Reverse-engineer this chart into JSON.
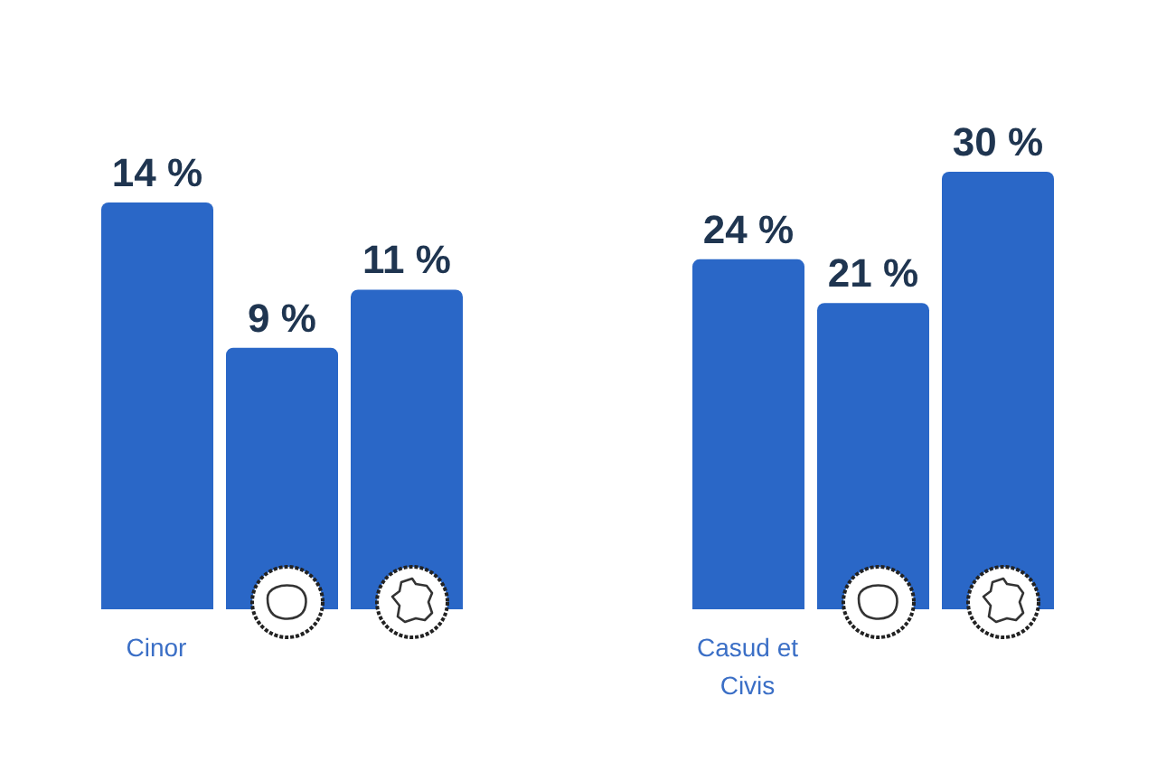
{
  "chart_data": [
    {
      "type": "bar",
      "categories": [
        "Cinor",
        null,
        null
      ],
      "values": [
        14,
        9,
        11
      ],
      "color": "#2a67c7",
      "value_labels": [
        "14 %",
        "9 %",
        "11 %"
      ]
    },
    {
      "type": "bar",
      "categories": [
        "Casud et Civis",
        null,
        null
      ],
      "values": [
        24,
        21,
        30
      ],
      "color": "#2a67c7",
      "value_labels": [
        "24 %",
        "21 %",
        "30 %"
      ]
    }
  ]
}
